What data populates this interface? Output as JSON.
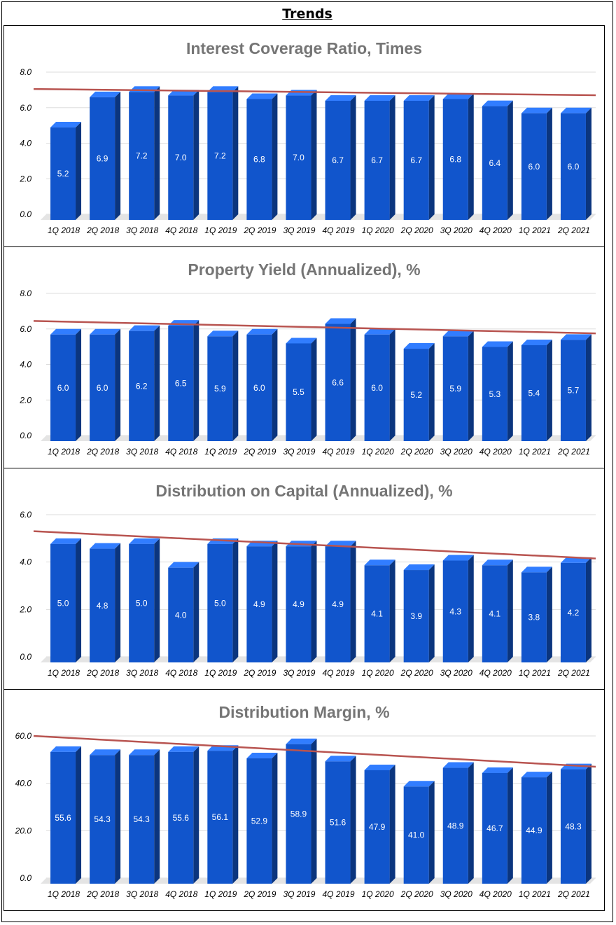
{
  "page_title": "Trends",
  "chart_data": [
    {
      "type": "bar",
      "title": "Interest Coverage Ratio, Times",
      "categories": [
        "1Q 2018",
        "2Q 2018",
        "3Q 2018",
        "4Q 2018",
        "1Q 2019",
        "2Q 2019",
        "3Q 2019",
        "4Q 2019",
        "1Q 2020",
        "2Q 2020",
        "3Q 2020",
        "4Q 2020",
        "1Q 2021",
        "2Q 2021"
      ],
      "values": [
        5.2,
        6.9,
        7.2,
        7.0,
        7.2,
        6.8,
        7.0,
        6.7,
        6.7,
        6.7,
        6.8,
        6.4,
        6.0,
        6.0
      ],
      "value_labels": [
        "5.2",
        "6.9",
        "7.2",
        "7.0",
        "7.2",
        "6.8",
        "7.0",
        "6.7",
        "6.7",
        "6.7",
        "6.8",
        "6.4",
        "6.0",
        "6.0"
      ],
      "ylim": [
        0,
        8
      ],
      "yticks": [
        "0.0",
        "2.0",
        "4.0",
        "6.0",
        "8.0"
      ],
      "trendline": [
        7.05,
        6.7
      ],
      "xlabel": "",
      "ylabel": "",
      "grid": true,
      "colors": {
        "bar": "#1155cc",
        "trend": "#b85450"
      }
    },
    {
      "type": "bar",
      "title": "Property Yield (Annualized), %",
      "categories": [
        "1Q 2018",
        "2Q 2018",
        "3Q 2018",
        "4Q 2018",
        "1Q 2019",
        "2Q 2019",
        "3Q 2019",
        "4Q 2019",
        "1Q 2020",
        "2Q 2020",
        "3Q 2020",
        "4Q 2020",
        "1Q 2021",
        "2Q 2021"
      ],
      "values": [
        6.0,
        6.0,
        6.2,
        6.5,
        5.9,
        6.0,
        5.5,
        6.6,
        6.0,
        5.2,
        5.9,
        5.3,
        5.4,
        5.7
      ],
      "value_labels": [
        "6.0",
        "6.0",
        "6.2",
        "6.5",
        "5.9",
        "6.0",
        "5.5",
        "6.6",
        "6.0",
        "5.2",
        "5.9",
        "5.3",
        "5.4",
        "5.7"
      ],
      "ylim": [
        0,
        8
      ],
      "yticks": [
        "0.0",
        "2.0",
        "4.0",
        "6.0",
        "8.0"
      ],
      "trendline": [
        6.45,
        5.75
      ],
      "xlabel": "",
      "ylabel": "",
      "grid": true,
      "colors": {
        "bar": "#1155cc",
        "trend": "#b85450"
      }
    },
    {
      "type": "bar",
      "title": "Distribution on Capital (Annualized), %",
      "categories": [
        "1Q 2018",
        "2Q 2018",
        "3Q 2018",
        "4Q 2018",
        "1Q 2019",
        "2Q 2019",
        "3Q 2019",
        "4Q 2019",
        "1Q 2020",
        "2Q 2020",
        "3Q 2020",
        "4Q 2020",
        "1Q 2021",
        "2Q 2021"
      ],
      "values": [
        5.0,
        4.8,
        5.0,
        4.0,
        5.0,
        4.9,
        4.9,
        4.9,
        4.1,
        3.9,
        4.3,
        4.1,
        3.8,
        4.2
      ],
      "value_labels": [
        "5.0",
        "4.8",
        "5.0",
        "4.0",
        "5.0",
        "4.9",
        "4.9",
        "4.9",
        "4.1",
        "3.9",
        "4.3",
        "4.1",
        "3.8",
        "4.2"
      ],
      "ylim": [
        0,
        6
      ],
      "yticks": [
        "0.0",
        "2.0",
        "4.0",
        "6.0"
      ],
      "trendline": [
        5.3,
        4.15
      ],
      "xlabel": "",
      "ylabel": "",
      "grid": true,
      "colors": {
        "bar": "#1155cc",
        "trend": "#b85450"
      }
    },
    {
      "type": "bar",
      "title": "Distribution Margin, %",
      "categories": [
        "1Q 2018",
        "2Q 2018",
        "3Q 2018",
        "4Q 2018",
        "1Q 2019",
        "2Q 2019",
        "3Q 2019",
        "4Q 2019",
        "1Q 2020",
        "2Q 2020",
        "3Q 2020",
        "4Q 2020",
        "1Q 2021",
        "2Q 2021"
      ],
      "values": [
        55.6,
        54.3,
        54.3,
        55.6,
        56.1,
        52.9,
        58.9,
        51.6,
        47.9,
        41.0,
        48.9,
        46.7,
        44.9,
        48.3
      ],
      "value_labels": [
        "55.6",
        "54.3",
        "54.3",
        "55.6",
        "56.1",
        "52.9",
        "58.9",
        "51.6",
        "47.9",
        "41.0",
        "48.9",
        "46.7",
        "44.9",
        "48.3"
      ],
      "ylim": [
        0,
        60
      ],
      "yticks": [
        "0.0",
        "20.0",
        "40.0",
        "60.0"
      ],
      "trendline": [
        60.0,
        47.0
      ],
      "xlabel": "",
      "ylabel": "",
      "grid": true,
      "colors": {
        "bar": "#1155cc",
        "trend": "#b85450"
      }
    }
  ]
}
